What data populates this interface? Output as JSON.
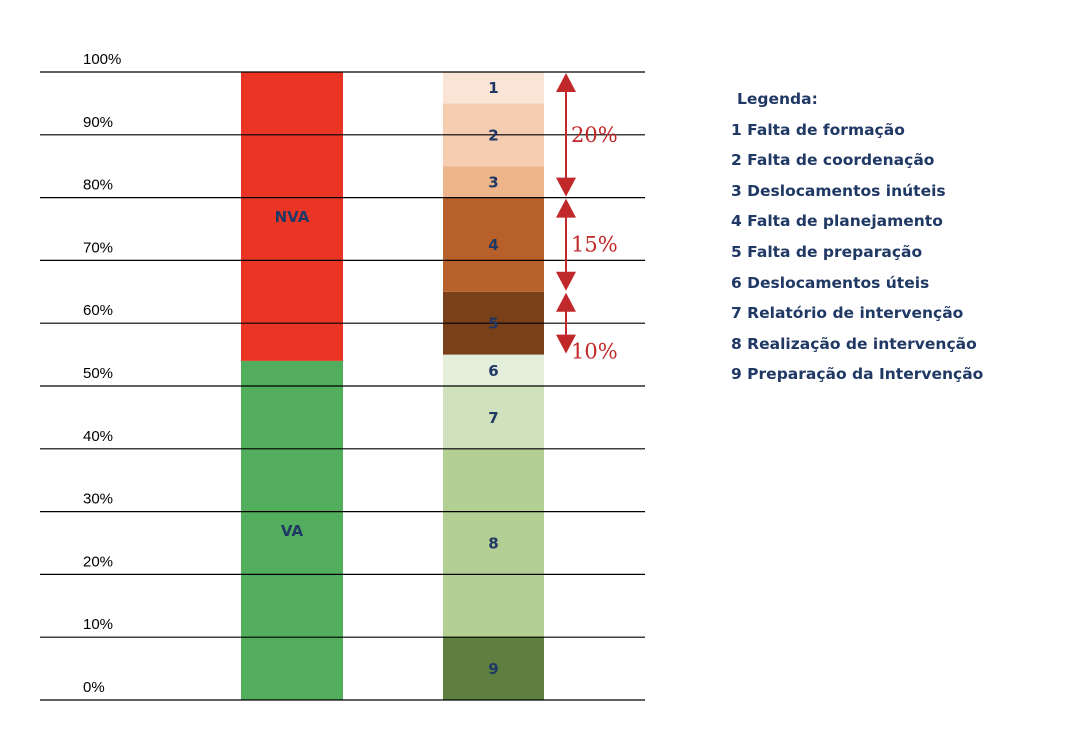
{
  "chart_data": {
    "type": "bar",
    "stacked": true,
    "ylim": [
      0,
      100
    ],
    "y_ticks": [
      "0%",
      "10%",
      "20%",
      "30%",
      "40%",
      "50%",
      "60%",
      "70%",
      "80%",
      "90%",
      "100%"
    ],
    "bars": [
      {
        "segments": [
          {
            "label": "VA",
            "value": 54,
            "color": "#52ae5d",
            "label_color": "#1f3864"
          },
          {
            "label": "NVA",
            "value": 46,
            "color": "#ea3524",
            "label_color": "#1f3864"
          }
        ]
      },
      {
        "segments": [
          {
            "label": "9",
            "value": 10,
            "color": "#5e7f3f",
            "label_color": "#1f3864"
          },
          {
            "label": "8",
            "value": 30,
            "color": "#b3cf94",
            "label_color": "#1f3864"
          },
          {
            "label": "7",
            "value": 10,
            "color": "#cfe2bd",
            "label_color": "#1f3864"
          },
          {
            "label": "6",
            "value": 5,
            "color": "#e3eedb",
            "label_color": "#1f3864"
          },
          {
            "label": "5",
            "value": 10,
            "color": "#7a4019",
            "label_color": "#1f3864"
          },
          {
            "label": "4",
            "value": 15,
            "color": "#b7602a",
            "label_color": "#1f3864"
          },
          {
            "label": "3",
            "value": 5,
            "color": "#efb58a",
            "label_color": "#1f3864"
          },
          {
            "label": "2",
            "value": 10,
            "color": "#f5cdb1",
            "label_color": "#1f3864"
          },
          {
            "label": "1",
            "value": 5,
            "color": "#f9e4d6",
            "label_color": "#1f3864"
          }
        ]
      }
    ],
    "annotations": [
      {
        "label": "20%",
        "from": 80,
        "to": 100
      },
      {
        "label": "15%",
        "from": 65,
        "to": 80
      },
      {
        "label": "10%",
        "from": 55,
        "to": 65
      }
    ],
    "annotation_color": "#c0282a",
    "grid": true,
    "legend_position": "right"
  },
  "legend": {
    "title": "Legenda:",
    "items": [
      "1 Falta de formação",
      "2 Falta de coordenação",
      "3 Deslocamentos inúteis",
      "4 Falta de planejamento",
      "5 Falta de preparação",
      "6 Deslocamentos úteis",
      "7 Relatório de intervenção",
      "8 Realização de intervenção",
      "9 Preparação da Intervenção"
    ]
  }
}
